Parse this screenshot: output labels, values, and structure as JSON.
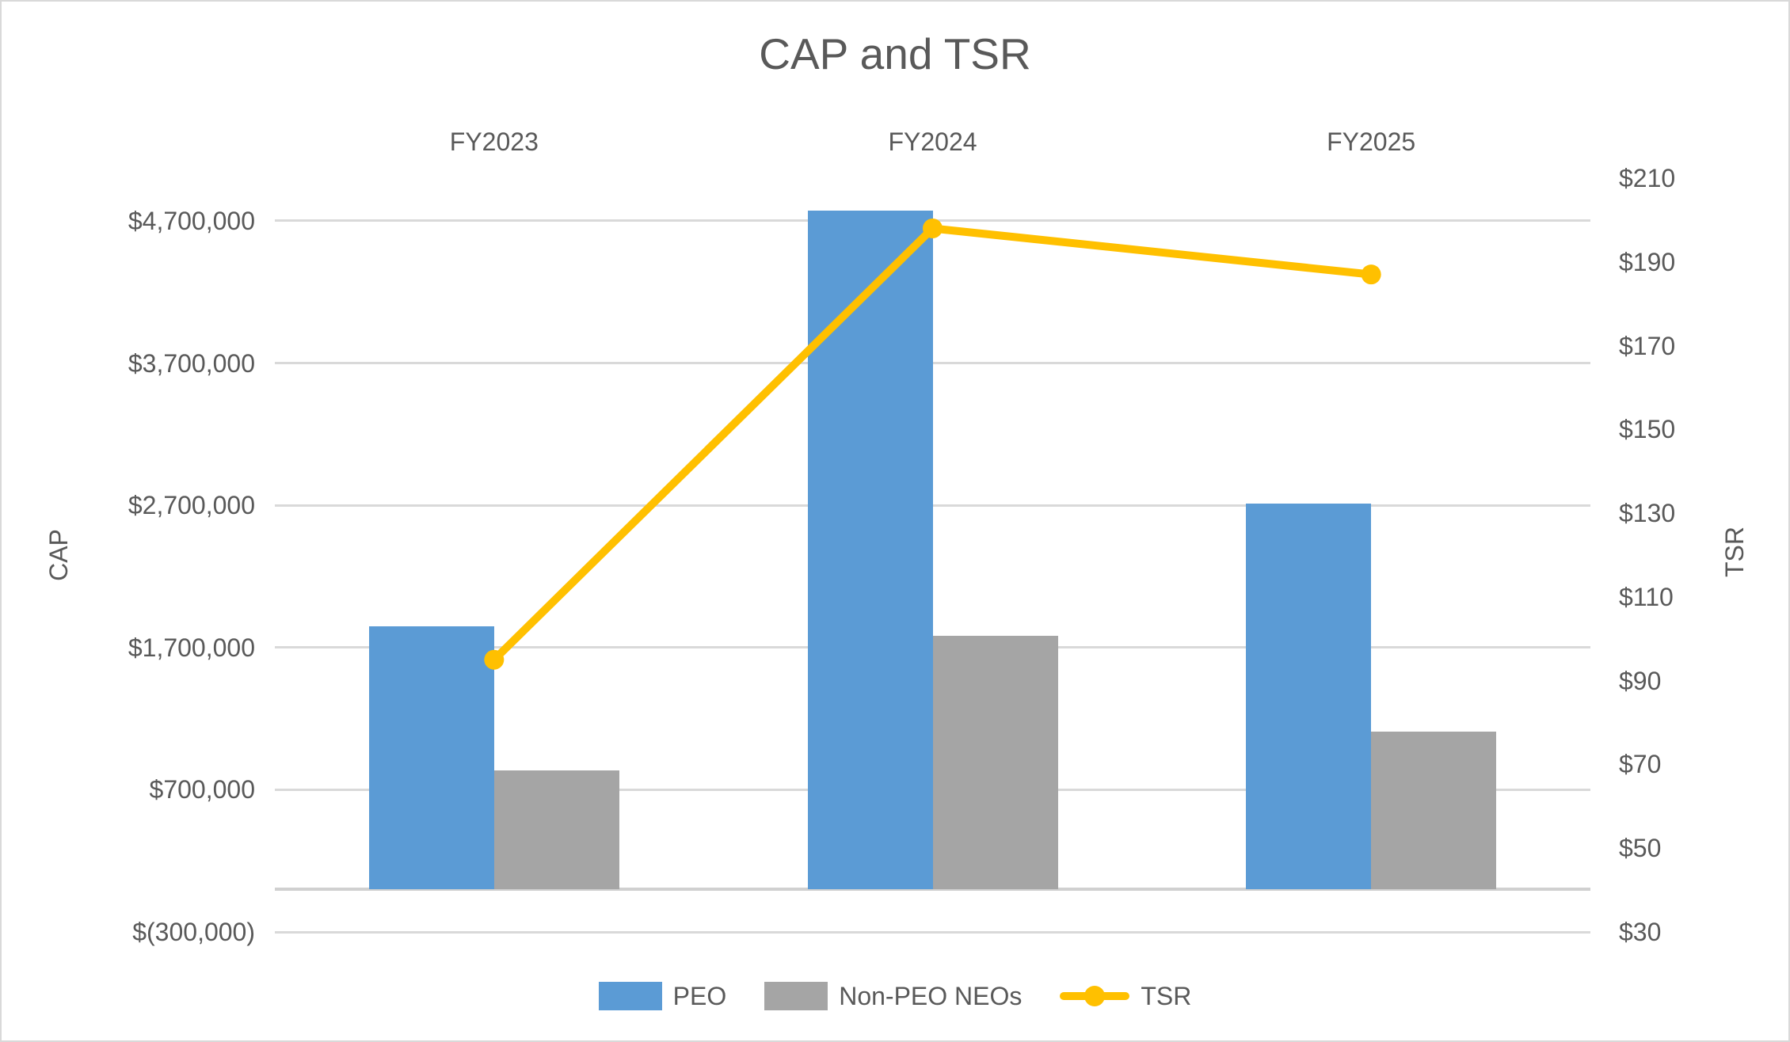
{
  "title": "CAP and TSR",
  "chart_data": {
    "type": "combo-bar-line",
    "categories": [
      "FY2023",
      "FY2024",
      "FY2025"
    ],
    "series": [
      {
        "name": "PEO",
        "type": "bar",
        "axis": "primary",
        "color": "#5B9BD5",
        "values": [
          1850000,
          4770000,
          2710000
        ]
      },
      {
        "name": "Non-PEO NEOs",
        "type": "bar",
        "axis": "primary",
        "color": "#A5A5A5",
        "values": [
          835000,
          1780000,
          1110000
        ]
      },
      {
        "name": "TSR",
        "type": "line",
        "axis": "secondary",
        "color": "#FFC000",
        "values": [
          95,
          198,
          187
        ]
      }
    ],
    "primary_axis": {
      "title": "CAP",
      "min": -300000,
      "max": 5000000,
      "tick_values": [
        4700000,
        3700000,
        2700000,
        1700000,
        700000,
        -300000
      ],
      "tick_labels": [
        "$4,700,000",
        "$3,700,000",
        "$2,700,000",
        "$1,700,000",
        "$700,000",
        "$(300,000)"
      ],
      "zero_line_value": 0
    },
    "secondary_axis": {
      "title": "TSR",
      "min": 30,
      "max": 210,
      "tick_values": [
        210,
        190,
        170,
        150,
        130,
        110,
        90,
        70,
        50,
        30
      ],
      "tick_labels": [
        "$210",
        "$190",
        "$170",
        "$150",
        "$130",
        "$110",
        "$90",
        "$70",
        "$50",
        "$30"
      ]
    },
    "legend_position": "bottom",
    "grid": true
  },
  "colors": {
    "background": "#FFFFFF",
    "border": "#D9D9D9",
    "gridline": "#D9D9D9",
    "axis_line": "#D0D0D0",
    "text": "#595959"
  }
}
